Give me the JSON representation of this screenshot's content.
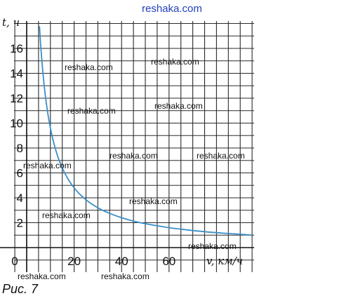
{
  "chart_data": {
    "type": "line",
    "xlabel": "v, км/ч",
    "ylabel": "t, ч",
    "xlim": [
      -5,
      100
    ],
    "ylim": [
      -1,
      18
    ],
    "x_ticks": [
      "0",
      "20",
      "40",
      "60"
    ],
    "y_ticks": [
      "2",
      "4",
      "6",
      "8",
      "10",
      "12",
      "14",
      "16"
    ],
    "grid": true,
    "series": [
      {
        "values_x": [
          6,
          7,
          8,
          9,
          10,
          11,
          12,
          13,
          14,
          15,
          16,
          18,
          20,
          22,
          25,
          28,
          32,
          36,
          40,
          45,
          50,
          55,
          60,
          65,
          70,
          75,
          80,
          85,
          90,
          95
        ],
        "values_y": [
          16,
          13.71,
          12,
          10.67,
          9.6,
          8.73,
          8,
          7.38,
          6.86,
          6.4,
          6,
          5.33,
          4.8,
          4.36,
          3.84,
          3.43,
          3,
          2.67,
          2.4,
          2.13,
          1.92,
          1.75,
          1.6,
          1.48,
          1.37,
          1.28,
          1.2,
          1.13,
          1.07,
          1.01
        ]
      }
    ]
  },
  "watermarks": {
    "top": "reshaka.com",
    "items": [
      "reshaka.com",
      "reshaka.com",
      "reshaka.com",
      "reshaka.com",
      "reshaka.com",
      "reshaka.com",
      "reshaka.com",
      "reshaka.com",
      "reshaka.com",
      "reshaka.com",
      "reshaka.com",
      "reshaka.com",
      "reshaka.com"
    ]
  },
  "caption": "Рис. 7",
  "colors": {
    "curve": "#3a8fc9",
    "grid": "#2a2a2a",
    "watermark_top": "#1f3fbf"
  }
}
